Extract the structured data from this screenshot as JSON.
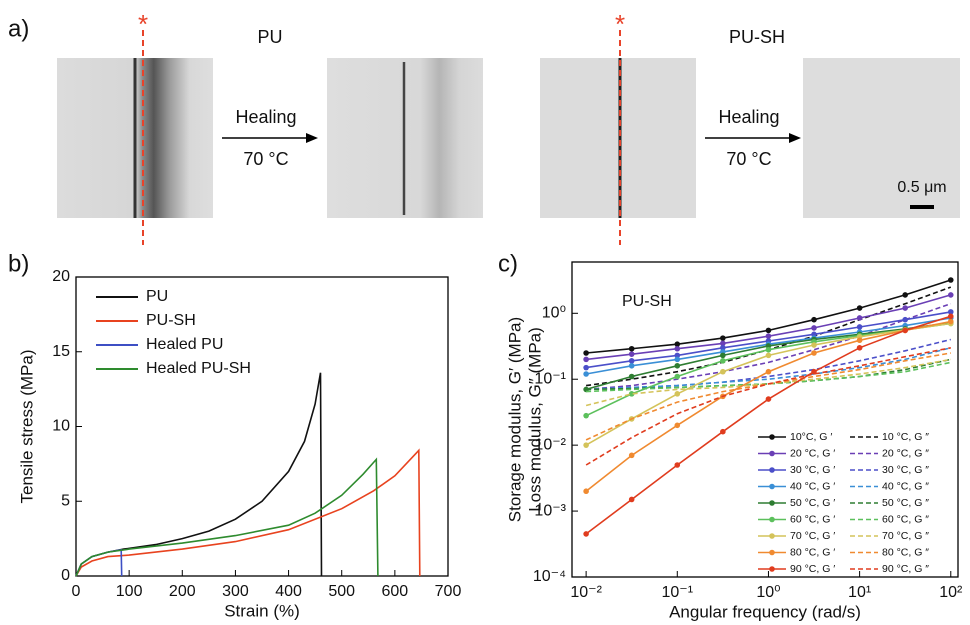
{
  "panel_a": {
    "label": "a)",
    "groups": [
      {
        "title": "PU",
        "arrow_text": "Healing",
        "arrow_temp": "70 °C"
      },
      {
        "title": "PU-SH",
        "arrow_text": "Healing",
        "arrow_temp": "70 °C"
      }
    ],
    "scale_bar": "0.5 μm"
  },
  "chart_data": [
    {
      "type": "line",
      "label": "b)",
      "xlabel": "Strain (%)",
      "ylabel": "Tensile stress (MPa)",
      "xlim": [
        0,
        700
      ],
      "xticks": [
        0,
        100,
        200,
        300,
        400,
        500,
        600,
        700
      ],
      "ylim": [
        0,
        20
      ],
      "yticks": [
        0,
        5,
        10,
        15,
        20
      ],
      "legend": "upper left",
      "series": [
        {
          "name": "PU",
          "color": "#111111",
          "x": [
            0,
            10,
            30,
            60,
            90,
            150,
            200,
            250,
            300,
            350,
            400,
            430,
            450,
            460,
            462
          ],
          "values": [
            0,
            0.8,
            1.3,
            1.6,
            1.8,
            2.1,
            2.5,
            3.0,
            3.8,
            5.0,
            7.0,
            9.0,
            11.5,
            13.6,
            0
          ]
        },
        {
          "name": "PU-SH",
          "color": "#e8431f",
          "x": [
            0,
            10,
            30,
            60,
            100,
            200,
            300,
            400,
            500,
            560,
            600,
            645,
            647
          ],
          "values": [
            0,
            0.6,
            1.0,
            1.3,
            1.4,
            1.8,
            2.3,
            3.1,
            4.5,
            5.7,
            6.7,
            8.4,
            0
          ]
        },
        {
          "name": "Healed PU",
          "color": "#3d4fc4",
          "x": [
            0,
            10,
            30,
            60,
            85,
            86
          ],
          "values": [
            0,
            0.8,
            1.3,
            1.6,
            1.75,
            0
          ]
        },
        {
          "name": "Healed PU-SH",
          "color": "#2e8b2e",
          "x": [
            0,
            10,
            30,
            60,
            100,
            200,
            300,
            400,
            450,
            500,
            540,
            565,
            568
          ],
          "values": [
            0,
            0.8,
            1.3,
            1.6,
            1.8,
            2.2,
            2.7,
            3.4,
            4.2,
            5.4,
            6.8,
            7.8,
            0
          ]
        }
      ]
    },
    {
      "type": "line",
      "label": "c)",
      "annotation": "PU-SH",
      "xlabel": "Angular frequency (rad/s)",
      "ylabel": [
        "Storage modulus, G′ (MPa)",
        "Loss modulus, G″ (MPa)"
      ],
      "xscale": "log",
      "yscale": "log",
      "xlim": [
        0.007,
        120
      ],
      "ylim": [
        0.0001,
        6
      ],
      "xticks": [
        {
          "value": 0.01,
          "label": "10⁻²"
        },
        {
          "value": 0.1,
          "label": "10⁻¹"
        },
        {
          "value": 1,
          "label": "10⁰"
        },
        {
          "value": 10,
          "label": "10¹"
        },
        {
          "value": 100,
          "label": "10²"
        }
      ],
      "yticks": [
        {
          "value": 0.0001,
          "label": "10⁻⁴"
        },
        {
          "value": 0.001,
          "label": "10⁻³"
        },
        {
          "value": 0.01,
          "label": "10⁻²"
        },
        {
          "value": 0.1,
          "label": "10⁻¹"
        },
        {
          "value": 1,
          "label": "10⁰"
        }
      ],
      "legend": "lower right",
      "x": [
        0.01,
        0.0316,
        0.1,
        0.316,
        1,
        3.16,
        10,
        31.6,
        100
      ],
      "series": [
        {
          "name": "10°C, G ′",
          "color": "#111111",
          "dash": false,
          "values": [
            0.25,
            0.29,
            0.34,
            0.42,
            0.55,
            0.8,
            1.2,
            1.9,
            3.2
          ]
        },
        {
          "name": "10 °C, G ″",
          "color": "#111111",
          "dash": true,
          "values": [
            0.08,
            0.1,
            0.13,
            0.18,
            0.28,
            0.45,
            0.8,
            1.4,
            2.5
          ]
        },
        {
          "name": "20 °C, G ′",
          "color": "#6a3fb5",
          "dash": false,
          "values": [
            0.2,
            0.24,
            0.29,
            0.35,
            0.45,
            0.6,
            0.85,
            1.2,
            1.9
          ]
        },
        {
          "name": "20 °C, G ″",
          "color": "#6a3fb5",
          "dash": true,
          "values": [
            0.07,
            0.08,
            0.1,
            0.13,
            0.18,
            0.28,
            0.45,
            0.8,
            1.4
          ]
        },
        {
          "name": "30 °C, G ′",
          "color": "#4b4fc9",
          "dash": false,
          "values": [
            0.15,
            0.19,
            0.23,
            0.3,
            0.38,
            0.48,
            0.62,
            0.8,
            1.05
          ]
        },
        {
          "name": "30 °C, G ″",
          "color": "#4b4fc9",
          "dash": true,
          "values": [
            0.07,
            0.075,
            0.08,
            0.09,
            0.11,
            0.14,
            0.19,
            0.27,
            0.4
          ]
        },
        {
          "name": "40 °C, G ′",
          "color": "#3a8fd6",
          "dash": false,
          "values": [
            0.12,
            0.16,
            0.2,
            0.26,
            0.34,
            0.42,
            0.52,
            0.65,
            0.85
          ]
        },
        {
          "name": "40 °C, G ″",
          "color": "#3a8fd6",
          "dash": true,
          "values": [
            0.07,
            0.075,
            0.08,
            0.09,
            0.1,
            0.12,
            0.15,
            0.2,
            0.3
          ]
        },
        {
          "name": "50 °C, G ′",
          "color": "#2e7d32",
          "dash": false,
          "values": [
            0.07,
            0.11,
            0.16,
            0.23,
            0.32,
            0.4,
            0.48,
            0.58,
            0.72
          ]
        },
        {
          "name": "50 °C, G ″",
          "color": "#2e7d32",
          "dash": true,
          "values": [
            0.07,
            0.072,
            0.075,
            0.08,
            0.085,
            0.095,
            0.11,
            0.14,
            0.2
          ]
        },
        {
          "name": "60 °C, G ′",
          "color": "#5cc05c",
          "dash": false,
          "values": [
            0.028,
            0.06,
            0.11,
            0.19,
            0.28,
            0.37,
            0.46,
            0.56,
            0.7
          ]
        },
        {
          "name": "60 °C, G ″",
          "color": "#5cc05c",
          "dash": true,
          "values": [
            0.065,
            0.07,
            0.075,
            0.08,
            0.085,
            0.095,
            0.11,
            0.13,
            0.18
          ]
        },
        {
          "name": "70 °C, G ′",
          "color": "#d4c35a",
          "dash": false,
          "values": [
            0.01,
            0.025,
            0.06,
            0.13,
            0.23,
            0.33,
            0.44,
            0.56,
            0.7
          ]
        },
        {
          "name": "70 °C, G ″",
          "color": "#d4c35a",
          "dash": true,
          "values": [
            0.04,
            0.06,
            0.07,
            0.075,
            0.085,
            0.1,
            0.12,
            0.15,
            0.2
          ]
        },
        {
          "name": "80 °C, G ′",
          "color": "#f08a30",
          "dash": false,
          "values": [
            0.002,
            0.007,
            0.02,
            0.055,
            0.13,
            0.25,
            0.39,
            0.55,
            0.75
          ]
        },
        {
          "name": "80 °C, G ″",
          "color": "#f08a30",
          "dash": true,
          "values": [
            0.012,
            0.025,
            0.045,
            0.065,
            0.085,
            0.11,
            0.14,
            0.19,
            0.25
          ]
        },
        {
          "name": "90 °C, G ′",
          "color": "#e03c1e",
          "dash": false,
          "values": [
            0.00045,
            0.0015,
            0.005,
            0.016,
            0.05,
            0.13,
            0.3,
            0.55,
            0.9
          ]
        },
        {
          "name": "90 °C, G ″",
          "color": "#e03c1e",
          "dash": true,
          "values": [
            0.005,
            0.013,
            0.03,
            0.055,
            0.085,
            0.12,
            0.16,
            0.22,
            0.3
          ]
        }
      ]
    }
  ]
}
